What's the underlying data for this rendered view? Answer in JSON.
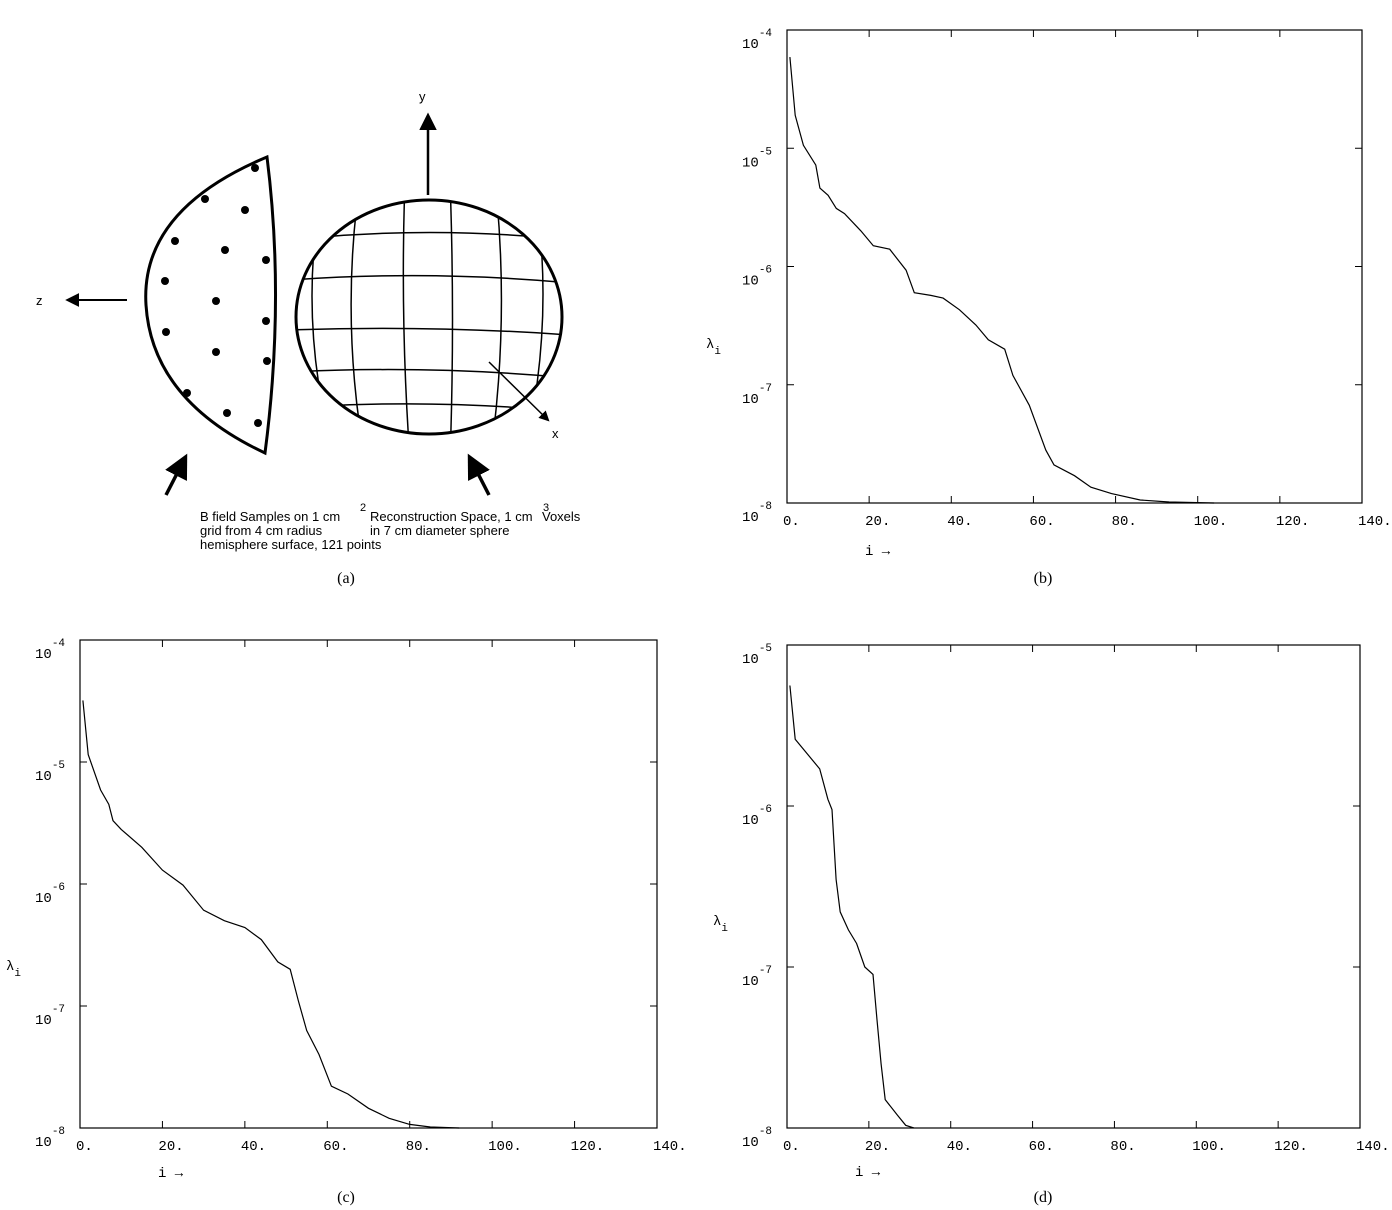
{
  "diagram": {
    "caption": "(a)",
    "axis_y": "y",
    "axis_z": "z",
    "axis_x": "x",
    "left_note": {
      "lines": [
        "B  field Samples on 1 cm",
        "grid from 4 cm  radius",
        "hemisphere surface, 121  points"
      ],
      "superscript": "2"
    },
    "right_note": {
      "lines": [
        "Reconstruction Space,  1 cm",
        "in  7 cm diameter sphere"
      ],
      "superscript": "3",
      "tail": "  Voxels"
    }
  },
  "chart_data": [
    {
      "type": "line",
      "caption": "(b)",
      "x_label": "i →",
      "y_label": "λ_i",
      "yscale": "log",
      "color": "#000000",
      "x": [
        0.7,
        2,
        4,
        7,
        8,
        10,
        12,
        14,
        18,
        21,
        25,
        29,
        31,
        35,
        38,
        42,
        46,
        49,
        53,
        55,
        59,
        63,
        65,
        70,
        74,
        79,
        86,
        93,
        104
      ],
      "values": [
        5.9e-05,
        1.9e-05,
        1.06e-05,
        7.2e-06,
        4.6e-06,
        4e-06,
        3.1e-06,
        2.8e-06,
        2e-06,
        1.5e-06,
        1.4e-06,
        9.3e-07,
        6e-07,
        5.7e-07,
        5.4e-07,
        4.3e-07,
        3.2e-07,
        2.4e-07,
        2e-07,
        1.2e-07,
        6.7e-08,
        2.8e-08,
        2.1e-08,
        1.7e-08,
        1.36e-08,
        1.2e-08,
        1.06e-08,
        1.02e-08,
        1e-08
      ],
      "xlim": [
        0,
        140
      ],
      "ylim": [
        1e-08,
        0.0001
      ],
      "xticks": [
        {
          "value": 0,
          "label": "0."
        },
        {
          "value": 20,
          "label": "20."
        },
        {
          "value": 40,
          "label": "40."
        },
        {
          "value": 60,
          "label": "60."
        },
        {
          "value": 80,
          "label": "80."
        },
        {
          "value": 100,
          "label": "100."
        },
        {
          "value": 120,
          "label": "120."
        },
        {
          "value": 140,
          "label": "140."
        }
      ],
      "yticks": [
        {
          "value": 0.0001,
          "label": "10^-4"
        },
        {
          "value": 1e-05,
          "label": "10^-5"
        },
        {
          "value": 1e-06,
          "label": "10^-6"
        },
        {
          "value": 1e-07,
          "label": "10^-7"
        },
        {
          "value": 1e-08,
          "label": "10^-8"
        }
      ]
    },
    {
      "type": "line",
      "caption": "(c)",
      "x_label": "i →",
      "y_label": "λ_i",
      "yscale": "log",
      "color": "#000000",
      "x": [
        0.7,
        2,
        5,
        7,
        8,
        10,
        15,
        20,
        25,
        30,
        35,
        40,
        44,
        48,
        51,
        53,
        55,
        58,
        61,
        65,
        70,
        75,
        80,
        85,
        92
      ],
      "values": [
        3.2e-05,
        1.15e-05,
        5.9e-06,
        4.5e-06,
        3.3e-06,
        2.8e-06,
        2e-06,
        1.3e-06,
        9.8e-07,
        6.1e-07,
        5e-07,
        4.4e-07,
        3.5e-07,
        2.3e-07,
        2e-07,
        1.1e-07,
        6.3e-08,
        4e-08,
        2.2e-08,
        1.9e-08,
        1.45e-08,
        1.2e-08,
        1.07e-08,
        1.02e-08,
        1e-08
      ],
      "xlim": [
        0,
        140
      ],
      "ylim": [
        1e-08,
        0.0001
      ],
      "xticks": [
        {
          "value": 0,
          "label": "0."
        },
        {
          "value": 20,
          "label": "20."
        },
        {
          "value": 40,
          "label": "40."
        },
        {
          "value": 60,
          "label": "60."
        },
        {
          "value": 80,
          "label": "80."
        },
        {
          "value": 100,
          "label": "100."
        },
        {
          "value": 120,
          "label": "120."
        },
        {
          "value": 140,
          "label": "140."
        }
      ],
      "yticks": [
        {
          "value": 0.0001,
          "label": "10^-4"
        },
        {
          "value": 1e-05,
          "label": "10^-5"
        },
        {
          "value": 1e-06,
          "label": "10^-6"
        },
        {
          "value": 1e-07,
          "label": "10^-7"
        },
        {
          "value": 1e-08,
          "label": "10^-8"
        }
      ]
    },
    {
      "type": "line",
      "caption": "(d)",
      "x_label": "i →",
      "y_label": "λ_i",
      "yscale": "log",
      "color": "#000000",
      "x": [
        0.7,
        2,
        5,
        8,
        10,
        11,
        12,
        13,
        15,
        17,
        19,
        21,
        22,
        23,
        24,
        27,
        29,
        31
      ],
      "values": [
        5.6e-06,
        2.6e-06,
        2.1e-06,
        1.7e-06,
        1.1e-06,
        9.5e-07,
        3.5e-07,
        2.2e-07,
        1.7e-07,
        1.4e-07,
        1e-07,
        9e-08,
        4.7e-08,
        2.5e-08,
        1.5e-08,
        1.2e-08,
        1.04e-08,
        1e-08
      ],
      "xlim": [
        0,
        140
      ],
      "ylim": [
        1e-08,
        1e-05
      ],
      "xticks": [
        {
          "value": 0,
          "label": "0."
        },
        {
          "value": 20,
          "label": "20."
        },
        {
          "value": 40,
          "label": "40."
        },
        {
          "value": 60,
          "label": "60."
        },
        {
          "value": 80,
          "label": "80."
        },
        {
          "value": 100,
          "label": "100."
        },
        {
          "value": 120,
          "label": "120."
        },
        {
          "value": 140,
          "label": "140."
        }
      ],
      "yticks": [
        {
          "value": 1e-05,
          "label": "10^-5"
        },
        {
          "value": 1e-06,
          "label": "10^-6"
        },
        {
          "value": 1e-07,
          "label": "10^-7"
        },
        {
          "value": 1e-08,
          "label": "10^-8"
        }
      ]
    }
  ]
}
